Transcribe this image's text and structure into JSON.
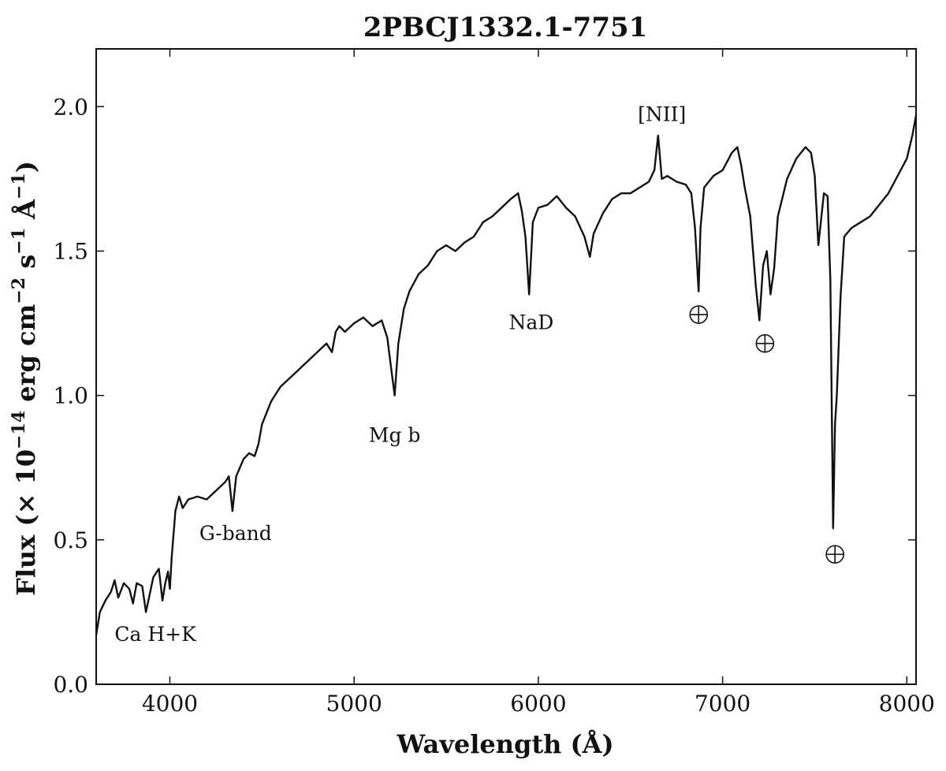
{
  "chart_data": {
    "type": "line",
    "title": "2PBCJ1332.1-7751",
    "xlabel": "Wavelength (Å)",
    "ylabel": "Flux (× 10",
    "ylabel_exp1": "−14",
    "ylabel_mid1": " erg cm",
    "ylabel_exp2": "−2",
    "ylabel_mid2": " s",
    "ylabel_exp3": "−1",
    "ylabel_mid3": " Å",
    "ylabel_exp4": "−1",
    "ylabel_end": ")",
    "xlim": [
      3600,
      8050
    ],
    "ylim": [
      0.0,
      2.2
    ],
    "xticks": [
      4000,
      5000,
      6000,
      7000,
      8000
    ],
    "xtick_labels": [
      "4000",
      "5000",
      "6000",
      "7000",
      "8000"
    ],
    "yticks": [
      0.0,
      0.5,
      1.0,
      1.5,
      2.0
    ],
    "ytick_labels": [
      "0.0",
      "0.5",
      "1.0",
      "1.5",
      "2.0"
    ],
    "grid": false,
    "series": [
      {
        "x": [
          3600,
          3620,
          3650,
          3680,
          3700,
          3720,
          3750,
          3780,
          3800,
          3820,
          3850,
          3870,
          3890,
          3910,
          3940,
          3960,
          3975,
          3990,
          4000,
          4010,
          4030,
          4050,
          4070,
          4100,
          4150,
          4200,
          4250,
          4300,
          4320,
          4340,
          4360,
          4400,
          4430,
          4460,
          4480,
          4500,
          4550,
          4600,
          4650,
          4700,
          4750,
          4800,
          4850,
          4880,
          4900,
          4920,
          4950,
          5000,
          5050,
          5100,
          5150,
          5180,
          5200,
          5220,
          5240,
          5270,
          5300,
          5350,
          5400,
          5450,
          5500,
          5550,
          5600,
          5650,
          5700,
          5750,
          5800,
          5850,
          5890,
          5910,
          5930,
          5950,
          5970,
          6000,
          6050,
          6100,
          6150,
          6200,
          6250,
          6280,
          6300,
          6350,
          6400,
          6450,
          6500,
          6550,
          6600,
          6630,
          6650,
          6670,
          6700,
          6750,
          6800,
          6830,
          6850,
          6870,
          6880,
          6900,
          6950,
          7000,
          7050,
          7080,
          7100,
          7120,
          7150,
          7180,
          7200,
          7220,
          7240,
          7260,
          7280,
          7300,
          7350,
          7400,
          7450,
          7480,
          7500,
          7520,
          7550,
          7570,
          7585,
          7600,
          7610,
          7620,
          7640,
          7660,
          7700,
          7750,
          7800,
          7850,
          7900,
          7950,
          8000,
          8030,
          8050
        ],
        "y": [
          0.17,
          0.25,
          0.29,
          0.32,
          0.36,
          0.3,
          0.35,
          0.33,
          0.28,
          0.35,
          0.34,
          0.25,
          0.31,
          0.37,
          0.4,
          0.29,
          0.35,
          0.39,
          0.33,
          0.44,
          0.6,
          0.65,
          0.61,
          0.64,
          0.65,
          0.64,
          0.67,
          0.7,
          0.72,
          0.6,
          0.72,
          0.78,
          0.8,
          0.79,
          0.83,
          0.9,
          0.98,
          1.03,
          1.06,
          1.09,
          1.12,
          1.15,
          1.18,
          1.15,
          1.22,
          1.24,
          1.22,
          1.25,
          1.27,
          1.24,
          1.26,
          1.2,
          1.1,
          1.0,
          1.18,
          1.3,
          1.36,
          1.42,
          1.45,
          1.5,
          1.52,
          1.5,
          1.53,
          1.55,
          1.6,
          1.62,
          1.65,
          1.68,
          1.7,
          1.64,
          1.55,
          1.35,
          1.6,
          1.65,
          1.66,
          1.69,
          1.65,
          1.62,
          1.55,
          1.48,
          1.56,
          1.63,
          1.68,
          1.7,
          1.7,
          1.72,
          1.74,
          1.78,
          1.9,
          1.75,
          1.76,
          1.74,
          1.73,
          1.7,
          1.58,
          1.36,
          1.58,
          1.72,
          1.76,
          1.78,
          1.84,
          1.86,
          1.8,
          1.72,
          1.62,
          1.38,
          1.26,
          1.45,
          1.5,
          1.35,
          1.44,
          1.62,
          1.75,
          1.82,
          1.86,
          1.84,
          1.76,
          1.52,
          1.7,
          1.69,
          1.4,
          0.54,
          0.9,
          1.0,
          1.34,
          1.55,
          1.58,
          1.6,
          1.62,
          1.66,
          1.7,
          1.76,
          1.82,
          1.9,
          1.97
        ]
      }
    ],
    "annotations": [
      {
        "text": "Ca H+K",
        "x": 3700,
        "y": 0.15
      },
      {
        "text": "G-band",
        "x": 4160,
        "y": 0.5
      },
      {
        "text": "Mg b",
        "x": 5080,
        "y": 0.84
      },
      {
        "text": "NaD",
        "x": 5840,
        "y": 1.23
      },
      {
        "text": "[NII]",
        "x": 6540,
        "y": 1.95
      }
    ],
    "telluric_markers": [
      {
        "x": 6870,
        "y": 1.28
      },
      {
        "x": 7230,
        "y": 1.18
      },
      {
        "x": 7610,
        "y": 0.45
      }
    ]
  }
}
